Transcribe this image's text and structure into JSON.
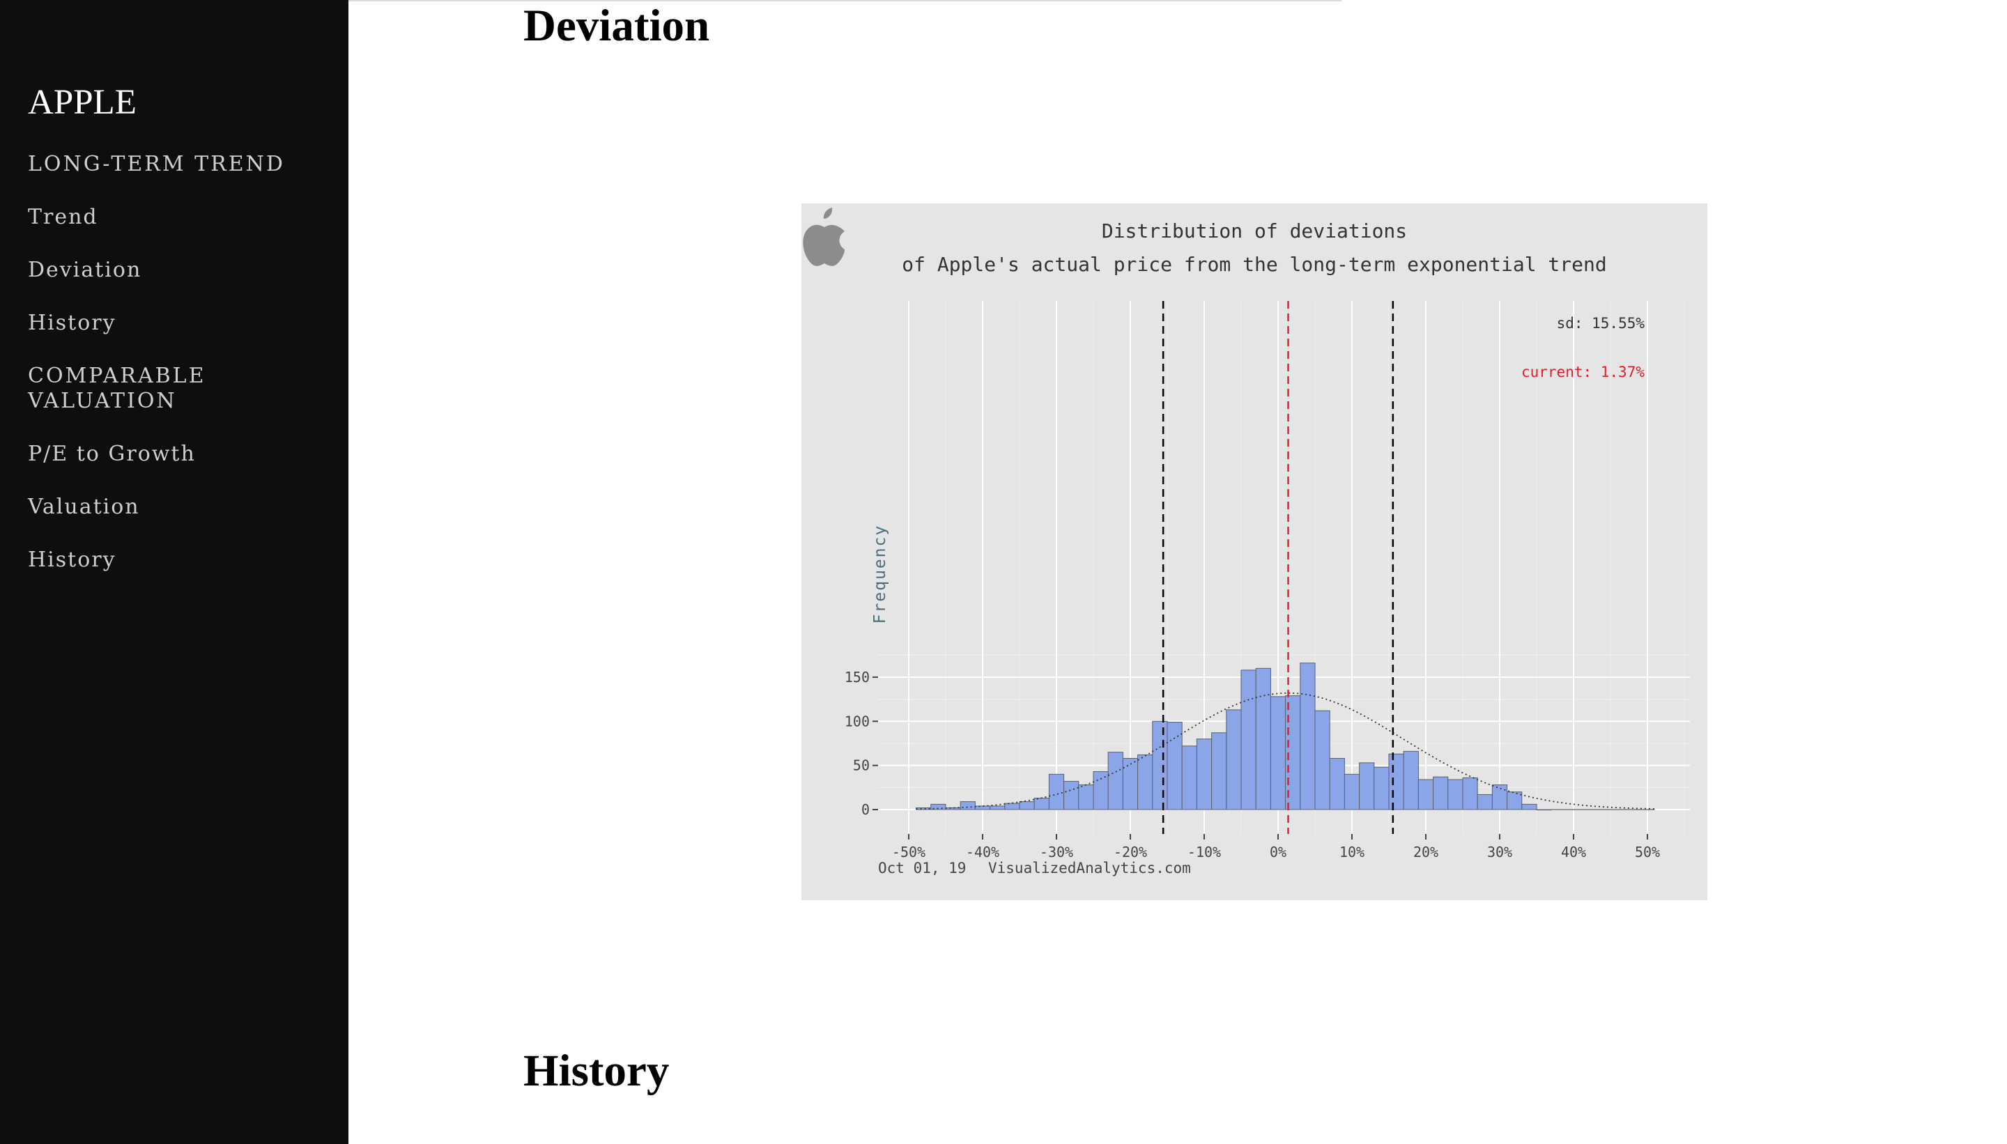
{
  "sidebar": {
    "brand": "APPLE",
    "items": [
      {
        "label": "LONG-TERM TREND"
      },
      {
        "label": "Trend"
      },
      {
        "label": "Deviation"
      },
      {
        "label": "History"
      },
      {
        "label": "COMPARABLE VALUATION"
      },
      {
        "label": "P/E to Growth"
      },
      {
        "label": "Valuation"
      },
      {
        "label": "History"
      }
    ]
  },
  "main": {
    "section1_title": "Deviation",
    "section2_title": "History"
  },
  "chart_data": {
    "type": "bar",
    "title": "Distribution of deviations",
    "subtitle": "of Apple's actual price from the long-term exponential trend",
    "xlabel": "",
    "ylabel": "Frequency",
    "xlim": [
      -52,
      53
    ],
    "ylim": [
      0,
      190
    ],
    "x_tick_labels": [
      "-50%",
      "-40%",
      "-30%",
      "-20%",
      "-10%",
      "0%",
      "10%",
      "20%",
      "30%",
      "40%",
      "50%"
    ],
    "x_ticks": [
      -50,
      -40,
      -30,
      -20,
      -10,
      0,
      10,
      20,
      30,
      40,
      50
    ],
    "y_tick_labels": [
      "0",
      "50",
      "100",
      "150"
    ],
    "y_ticks": [
      0,
      50,
      100,
      150
    ],
    "bin_width": 2,
    "bin_centers": [
      -48,
      -46,
      -44,
      -42,
      -40,
      -38,
      -36,
      -34,
      -32,
      -30,
      -28,
      -26,
      -24,
      -22,
      -20,
      -18,
      -16,
      -14,
      -12,
      -10,
      -8,
      -6,
      -4,
      -2,
      0,
      2,
      4,
      6,
      8,
      10,
      12,
      14,
      16,
      18,
      20,
      22,
      24,
      26,
      28,
      30,
      32,
      34,
      36
    ],
    "values": [
      2,
      6,
      2,
      9,
      4,
      4,
      7,
      9,
      13,
      40,
      32,
      28,
      43,
      65,
      58,
      62,
      100,
      99,
      72,
      80,
      87,
      113,
      158,
      160,
      128,
      129,
      166,
      112,
      58,
      40,
      53,
      48,
      63,
      66,
      34,
      37,
      34,
      36,
      17,
      28,
      20,
      6,
      0
    ],
    "normal_curve": {
      "mean": 1.37,
      "sd": 15.55,
      "peak": 132
    },
    "reference_lines": [
      {
        "x": -15.55,
        "color": "#000000",
        "style": "dashed"
      },
      {
        "x": 1.37,
        "color": "#e0202c",
        "style": "dashed"
      },
      {
        "x": 15.55,
        "color": "#000000",
        "style": "dashed"
      }
    ],
    "annotations": {
      "sd": "sd: 15.55%",
      "current": "current: 1.37%"
    },
    "bar_color": "#8aa5e8",
    "current_color": "#e0202c",
    "date": "Oct 01, 19",
    "source": "VisualizedAnalytics.com",
    "grid": true
  }
}
